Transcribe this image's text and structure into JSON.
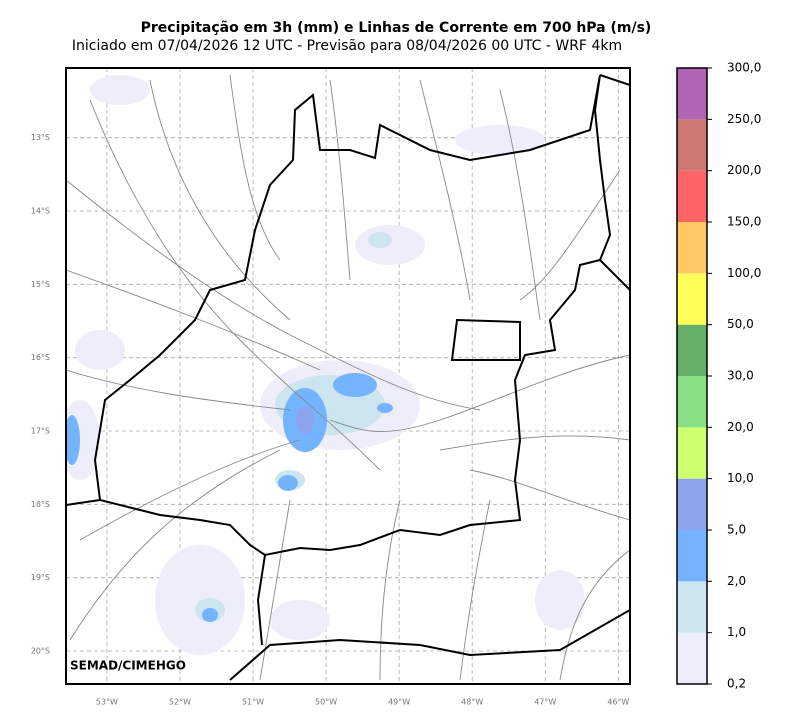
{
  "map": {
    "title": "Precipitação em 3h (mm) e Linhas de Corrente em 700 hPa (m/s)",
    "subtitle": "Iniciado em 07/04/2026 12 UTC - Previsão para 08/04/2026 00 UTC - WRF 4km",
    "credit": "SEMAD/CIMEHGO",
    "xlim": [
      -53.56,
      -45.84
    ],
    "ylim": [
      -20.45,
      -12.05
    ],
    "grid": true,
    "lat_ticks": [
      {
        "value": -13,
        "label": "13°S"
      },
      {
        "value": -14,
        "label": "14°S"
      },
      {
        "value": -15,
        "label": "15°S"
      },
      {
        "value": -16,
        "label": "16°S"
      },
      {
        "value": -17,
        "label": "17°S"
      },
      {
        "value": -18,
        "label": "18°S"
      },
      {
        "value": -19,
        "label": "19°S"
      },
      {
        "value": -20,
        "label": "20°S"
      }
    ],
    "lon_ticks": [
      {
        "value": -53,
        "label": "53°W"
      },
      {
        "value": -52,
        "label": "52°W"
      },
      {
        "value": -51,
        "label": "51°W"
      },
      {
        "value": -50,
        "label": "50°W"
      },
      {
        "value": -49,
        "label": "49°W"
      },
      {
        "value": -48,
        "label": "48°W"
      },
      {
        "value": -47,
        "label": "47°W"
      },
      {
        "value": -46,
        "label": "46°W"
      }
    ],
    "colorbar": {
      "levels": [
        {
          "value": 0.2,
          "label": "0,2"
        },
        {
          "value": 1,
          "label": "1,0"
        },
        {
          "value": 2,
          "label": "2,0"
        },
        {
          "value": 5,
          "label": "5,0"
        },
        {
          "value": 10,
          "label": "10,0"
        },
        {
          "value": 20,
          "label": "20,0"
        },
        {
          "value": 30,
          "label": "30,0"
        },
        {
          "value": 50,
          "label": "50,0"
        },
        {
          "value": 100,
          "label": "100,0"
        },
        {
          "value": 150,
          "label": "150,0"
        },
        {
          "value": 200,
          "label": "200,0"
        },
        {
          "value": 250,
          "label": "250,0"
        },
        {
          "value": 300,
          "label": "300,0"
        }
      ],
      "colors": [
        "#eeeefa",
        "#cde5ee",
        "#74b4ff",
        "#8da4ec",
        "#cdff70",
        "#86e184",
        "#66af66",
        "#ffff5c",
        "#ffc864",
        "#ff6464",
        "#cc7872",
        "#b064b4"
      ]
    }
  }
}
